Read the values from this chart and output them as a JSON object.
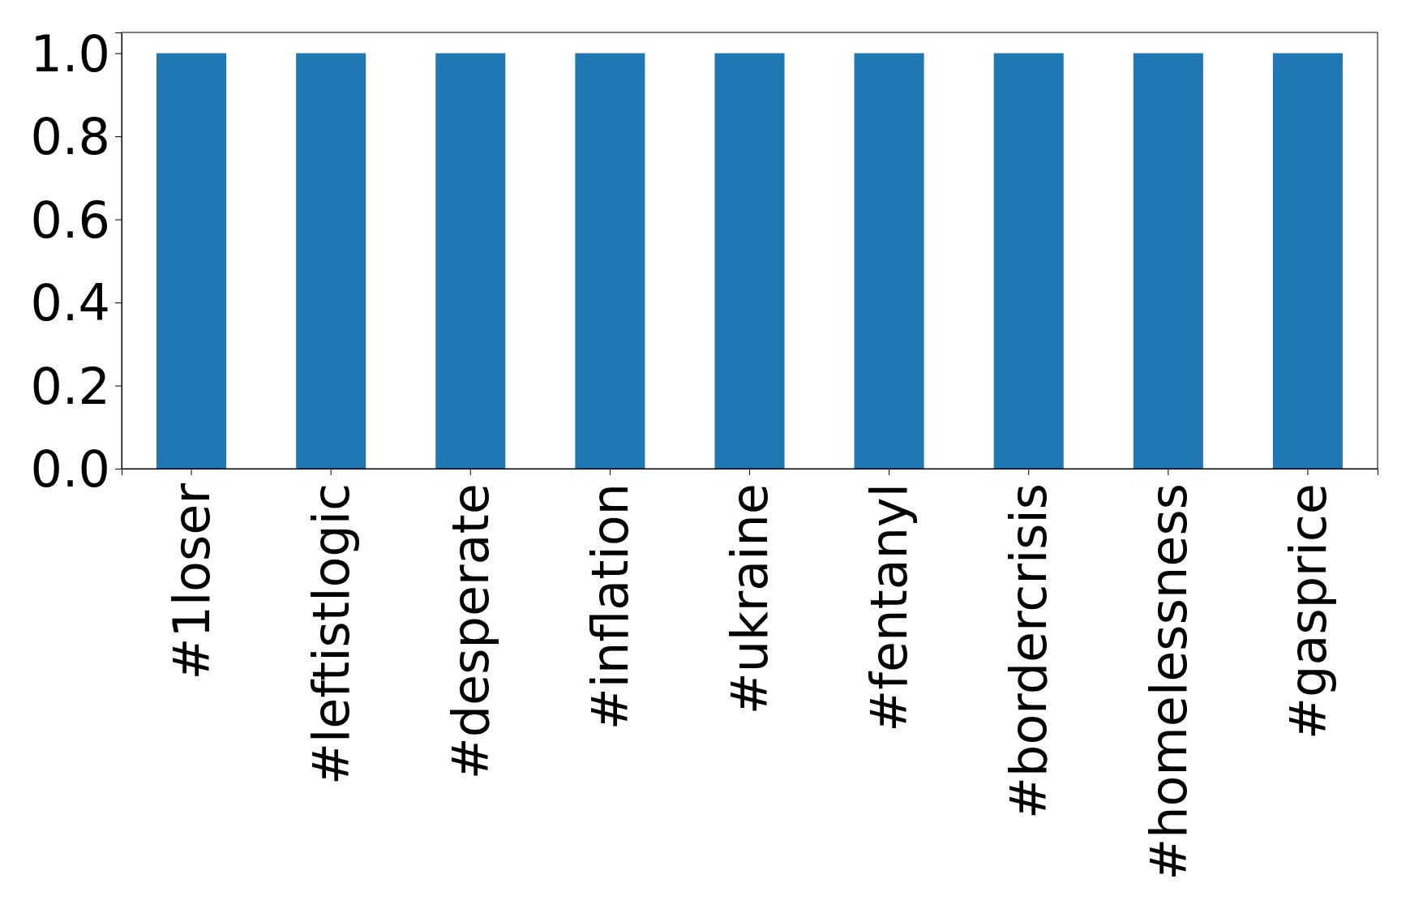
{
  "chart_data": {
    "type": "bar",
    "categories": [
      "#1loser",
      "#leftistlogic",
      "#desperate",
      "#inflation",
      "#ukraine",
      "#fentanyl",
      "#bordercrisis",
      "#homelessness",
      "#gasprice"
    ],
    "values": [
      1,
      1,
      1,
      1,
      1,
      1,
      1,
      1,
      1
    ],
    "color": "#1f77b4",
    "ylim": [
      0,
      1.05
    ],
    "yticks": [
      {
        "value": 0,
        "label": "0.0"
      },
      {
        "value": 0.2,
        "label": "0.2"
      },
      {
        "value": 0.4,
        "label": "0.4"
      },
      {
        "value": 0.6,
        "label": "0.6"
      },
      {
        "value": 0.8,
        "label": "0.8"
      },
      {
        "value": 1,
        "label": "1.0"
      }
    ]
  }
}
